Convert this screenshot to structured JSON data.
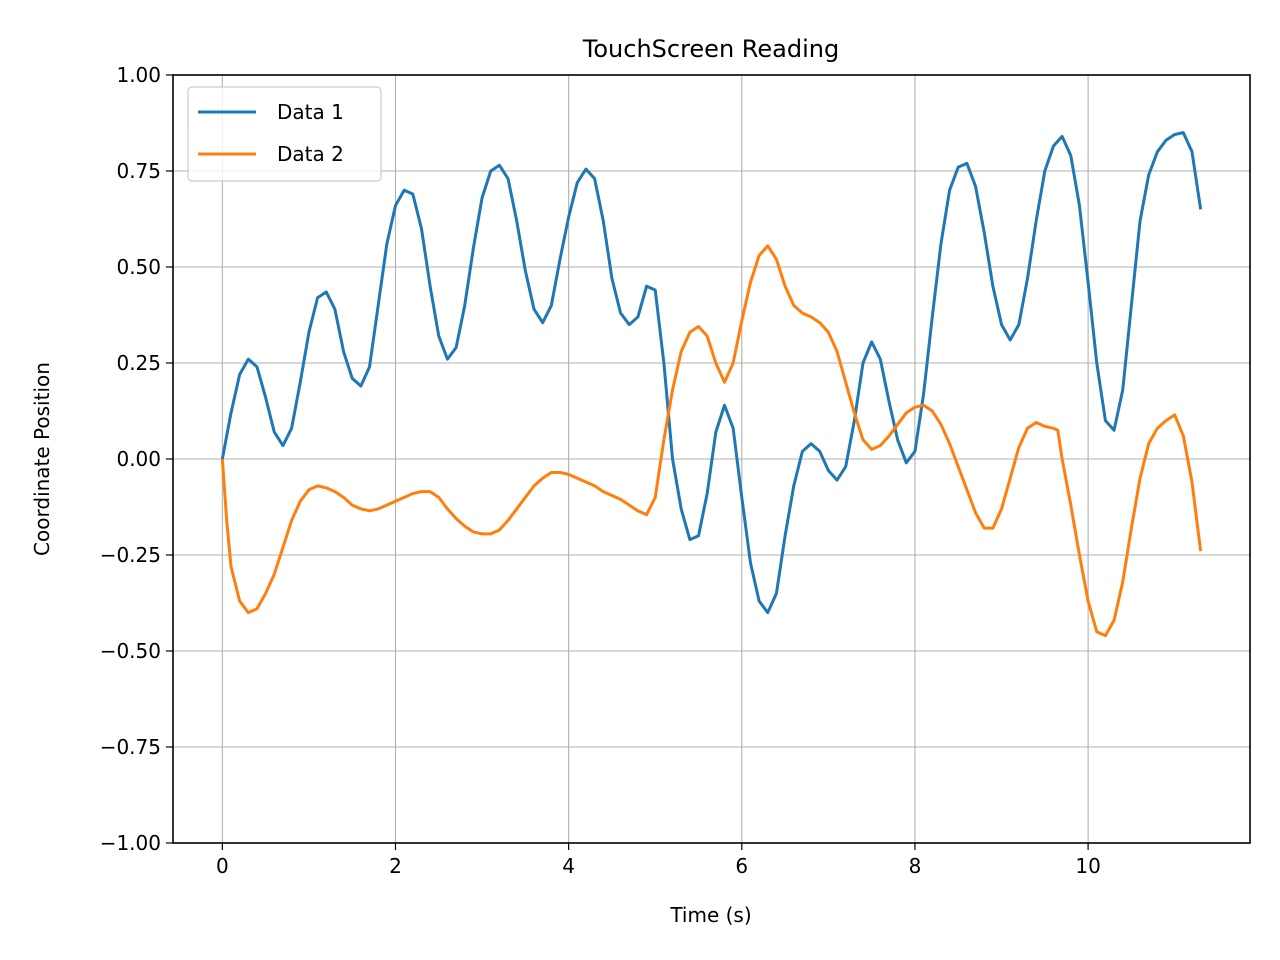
{
  "chart_data": {
    "type": "line",
    "title": "TouchScreen Reading",
    "xlabel": "Time (s)",
    "ylabel": "Coordinate Position",
    "xlim": [
      -0.57,
      11.87
    ],
    "ylim": [
      -1.0,
      1.0
    ],
    "xticks": [
      0,
      2,
      4,
      6,
      8,
      10
    ],
    "xtick_labels": [
      "0",
      "2",
      "4",
      "6",
      "8",
      "10"
    ],
    "yticks": [
      -1.0,
      -0.75,
      -0.5,
      -0.25,
      0.0,
      0.25,
      0.5,
      0.75,
      1.0
    ],
    "ytick_labels": [
      "−1.00",
      "−0.75",
      "−0.50",
      "−0.25",
      "0.00",
      "0.25",
      "0.50",
      "0.75",
      "1.00"
    ],
    "grid": true,
    "legend_position": "top-left",
    "series": [
      {
        "name": "Data 1",
        "color": "#1f77b4",
        "points": [
          [
            0.0,
            0.0
          ],
          [
            0.1,
            0.12
          ],
          [
            0.2,
            0.22
          ],
          [
            0.3,
            0.26
          ],
          [
            0.4,
            0.24
          ],
          [
            0.5,
            0.16
          ],
          [
            0.6,
            0.07
          ],
          [
            0.7,
            0.035
          ],
          [
            0.8,
            0.08
          ],
          [
            0.9,
            0.2
          ],
          [
            1.0,
            0.33
          ],
          [
            1.1,
            0.42
          ],
          [
            1.2,
            0.435
          ],
          [
            1.3,
            0.39
          ],
          [
            1.4,
            0.28
          ],
          [
            1.5,
            0.21
          ],
          [
            1.6,
            0.19
          ],
          [
            1.7,
            0.24
          ],
          [
            1.8,
            0.4
          ],
          [
            1.9,
            0.56
          ],
          [
            2.0,
            0.66
          ],
          [
            2.1,
            0.7
          ],
          [
            2.2,
            0.69
          ],
          [
            2.3,
            0.6
          ],
          [
            2.4,
            0.45
          ],
          [
            2.5,
            0.32
          ],
          [
            2.6,
            0.26
          ],
          [
            2.7,
            0.29
          ],
          [
            2.8,
            0.4
          ],
          [
            2.9,
            0.55
          ],
          [
            3.0,
            0.68
          ],
          [
            3.1,
            0.75
          ],
          [
            3.2,
            0.765
          ],
          [
            3.3,
            0.73
          ],
          [
            3.4,
            0.62
          ],
          [
            3.5,
            0.49
          ],
          [
            3.6,
            0.39
          ],
          [
            3.7,
            0.355
          ],
          [
            3.8,
            0.4
          ],
          [
            3.9,
            0.52
          ],
          [
            4.0,
            0.63
          ],
          [
            4.1,
            0.72
          ],
          [
            4.2,
            0.755
          ],
          [
            4.3,
            0.73
          ],
          [
            4.4,
            0.62
          ],
          [
            4.5,
            0.47
          ],
          [
            4.6,
            0.38
          ],
          [
            4.7,
            0.35
          ],
          [
            4.8,
            0.37
          ],
          [
            4.9,
            0.45
          ],
          [
            5.0,
            0.44
          ],
          [
            5.1,
            0.25
          ],
          [
            5.2,
            0.0
          ],
          [
            5.3,
            -0.13
          ],
          [
            5.4,
            -0.21
          ],
          [
            5.5,
            -0.2
          ],
          [
            5.6,
            -0.09
          ],
          [
            5.7,
            0.07
          ],
          [
            5.8,
            0.14
          ],
          [
            5.9,
            0.08
          ],
          [
            6.0,
            -0.1
          ],
          [
            6.1,
            -0.27
          ],
          [
            6.2,
            -0.37
          ],
          [
            6.3,
            -0.4
          ],
          [
            6.4,
            -0.35
          ],
          [
            6.5,
            -0.2
          ],
          [
            6.6,
            -0.07
          ],
          [
            6.7,
            0.02
          ],
          [
            6.8,
            0.04
          ],
          [
            6.9,
            0.02
          ],
          [
            7.0,
            -0.03
          ],
          [
            7.1,
            -0.055
          ],
          [
            7.2,
            -0.02
          ],
          [
            7.3,
            0.1
          ],
          [
            7.4,
            0.25
          ],
          [
            7.5,
            0.305
          ],
          [
            7.6,
            0.26
          ],
          [
            7.7,
            0.15
          ],
          [
            7.8,
            0.05
          ],
          [
            7.9,
            -0.01
          ],
          [
            8.0,
            0.02
          ],
          [
            8.1,
            0.17
          ],
          [
            8.2,
            0.37
          ],
          [
            8.3,
            0.56
          ],
          [
            8.4,
            0.7
          ],
          [
            8.5,
            0.76
          ],
          [
            8.6,
            0.77
          ],
          [
            8.7,
            0.71
          ],
          [
            8.8,
            0.59
          ],
          [
            8.9,
            0.45
          ],
          [
            9.0,
            0.35
          ],
          [
            9.1,
            0.31
          ],
          [
            9.2,
            0.35
          ],
          [
            9.3,
            0.47
          ],
          [
            9.4,
            0.62
          ],
          [
            9.5,
            0.75
          ],
          [
            9.6,
            0.815
          ],
          [
            9.7,
            0.84
          ],
          [
            9.8,
            0.79
          ],
          [
            9.9,
            0.66
          ],
          [
            10.0,
            0.46
          ],
          [
            10.1,
            0.25
          ],
          [
            10.2,
            0.1
          ],
          [
            10.3,
            0.075
          ],
          [
            10.4,
            0.18
          ],
          [
            10.5,
            0.4
          ],
          [
            10.6,
            0.62
          ],
          [
            10.7,
            0.74
          ],
          [
            10.8,
            0.8
          ],
          [
            10.9,
            0.83
          ],
          [
            11.0,
            0.845
          ],
          [
            11.1,
            0.85
          ],
          [
            11.2,
            0.8
          ],
          [
            11.3,
            0.65
          ]
        ]
      },
      {
        "name": "Data 2",
        "color": "#ff7f0e",
        "points": [
          [
            0.0,
            0.0
          ],
          [
            0.05,
            -0.16
          ],
          [
            0.1,
            -0.28
          ],
          [
            0.2,
            -0.37
          ],
          [
            0.3,
            -0.4
          ],
          [
            0.4,
            -0.39
          ],
          [
            0.5,
            -0.35
          ],
          [
            0.6,
            -0.3
          ],
          [
            0.7,
            -0.23
          ],
          [
            0.8,
            -0.16
          ],
          [
            0.9,
            -0.11
          ],
          [
            1.0,
            -0.08
          ],
          [
            1.1,
            -0.07
          ],
          [
            1.2,
            -0.075
          ],
          [
            1.3,
            -0.085
          ],
          [
            1.4,
            -0.1
          ],
          [
            1.5,
            -0.12
          ],
          [
            1.6,
            -0.13
          ],
          [
            1.7,
            -0.135
          ],
          [
            1.8,
            -0.13
          ],
          [
            1.9,
            -0.12
          ],
          [
            2.0,
            -0.11
          ],
          [
            2.1,
            -0.1
          ],
          [
            2.2,
            -0.09
          ],
          [
            2.3,
            -0.085
          ],
          [
            2.4,
            -0.085
          ],
          [
            2.5,
            -0.1
          ],
          [
            2.6,
            -0.13
          ],
          [
            2.7,
            -0.155
          ],
          [
            2.8,
            -0.175
          ],
          [
            2.9,
            -0.19
          ],
          [
            3.0,
            -0.195
          ],
          [
            3.1,
            -0.195
          ],
          [
            3.2,
            -0.185
          ],
          [
            3.3,
            -0.16
          ],
          [
            3.4,
            -0.13
          ],
          [
            3.5,
            -0.1
          ],
          [
            3.6,
            -0.07
          ],
          [
            3.7,
            -0.05
          ],
          [
            3.8,
            -0.035
          ],
          [
            3.9,
            -0.035
          ],
          [
            4.0,
            -0.04
          ],
          [
            4.1,
            -0.05
          ],
          [
            4.2,
            -0.06
          ],
          [
            4.3,
            -0.07
          ],
          [
            4.4,
            -0.085
          ],
          [
            4.5,
            -0.095
          ],
          [
            4.6,
            -0.105
          ],
          [
            4.7,
            -0.12
          ],
          [
            4.8,
            -0.135
          ],
          [
            4.9,
            -0.145
          ],
          [
            5.0,
            -0.1
          ],
          [
            5.1,
            0.05
          ],
          [
            5.2,
            0.18
          ],
          [
            5.3,
            0.28
          ],
          [
            5.4,
            0.33
          ],
          [
            5.5,
            0.345
          ],
          [
            5.6,
            0.32
          ],
          [
            5.7,
            0.25
          ],
          [
            5.8,
            0.2
          ],
          [
            5.9,
            0.25
          ],
          [
            6.0,
            0.36
          ],
          [
            6.1,
            0.46
          ],
          [
            6.2,
            0.53
          ],
          [
            6.3,
            0.555
          ],
          [
            6.4,
            0.52
          ],
          [
            6.5,
            0.45
          ],
          [
            6.6,
            0.4
          ],
          [
            6.7,
            0.38
          ],
          [
            6.8,
            0.37
          ],
          [
            6.9,
            0.355
          ],
          [
            7.0,
            0.33
          ],
          [
            7.1,
            0.28
          ],
          [
            7.2,
            0.2
          ],
          [
            7.3,
            0.12
          ],
          [
            7.4,
            0.05
          ],
          [
            7.5,
            0.025
          ],
          [
            7.6,
            0.035
          ],
          [
            7.7,
            0.06
          ],
          [
            7.8,
            0.09
          ],
          [
            7.9,
            0.12
          ],
          [
            8.0,
            0.135
          ],
          [
            8.1,
            0.14
          ],
          [
            8.2,
            0.125
          ],
          [
            8.3,
            0.09
          ],
          [
            8.4,
            0.04
          ],
          [
            8.5,
            -0.02
          ],
          [
            8.6,
            -0.08
          ],
          [
            8.7,
            -0.14
          ],
          [
            8.8,
            -0.18
          ],
          [
            8.9,
            -0.18
          ],
          [
            9.0,
            -0.13
          ],
          [
            9.1,
            -0.05
          ],
          [
            9.2,
            0.03
          ],
          [
            9.3,
            0.08
          ],
          [
            9.4,
            0.095
          ],
          [
            9.5,
            0.085
          ],
          [
            9.6,
            0.08
          ],
          [
            9.65,
            0.075
          ],
          [
            9.7,
            0.0
          ],
          [
            9.8,
            -0.12
          ],
          [
            9.9,
            -0.25
          ],
          [
            10.0,
            -0.37
          ],
          [
            10.1,
            -0.45
          ],
          [
            10.2,
            -0.46
          ],
          [
            10.3,
            -0.42
          ],
          [
            10.4,
            -0.32
          ],
          [
            10.5,
            -0.18
          ],
          [
            10.6,
            -0.05
          ],
          [
            10.7,
            0.04
          ],
          [
            10.8,
            0.08
          ],
          [
            10.9,
            0.1
          ],
          [
            11.0,
            0.115
          ],
          [
            11.1,
            0.06
          ],
          [
            11.2,
            -0.06
          ],
          [
            11.3,
            -0.24
          ]
        ]
      }
    ]
  }
}
